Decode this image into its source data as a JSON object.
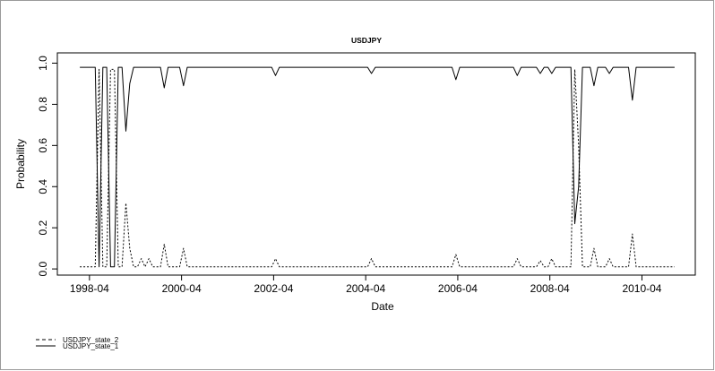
{
  "chart_data": {
    "type": "line",
    "title": "USDJPY",
    "xlabel": "Date",
    "ylabel": "Probability",
    "x_ticks": [
      "1998-04",
      "2000-04",
      "2002-04",
      "2004-04",
      "2006-04",
      "2008-04",
      "2010-04"
    ],
    "y_ticks": [
      "0.0",
      "0.2",
      "0.4",
      "0.6",
      "0.8",
      "1.0"
    ],
    "xlim": [
      "1998-01",
      "2010-12"
    ],
    "ylim": [
      -0.03,
      1.05
    ],
    "grid": false,
    "legend_position": "bottom-left",
    "x": [
      "1998-01",
      "1998-02",
      "1998-03",
      "1998-04",
      "1998-05",
      "1998-06",
      "1998-07",
      "1998-08",
      "1998-09",
      "1998-10",
      "1998-11",
      "1998-12",
      "1999-01",
      "1999-02",
      "1999-03",
      "1999-04",
      "1999-05",
      "1999-06",
      "1999-07",
      "1999-08",
      "1999-09",
      "1999-10",
      "1999-11",
      "1999-12",
      "2000-01",
      "2000-02",
      "2000-03",
      "2000-04",
      "2000-05",
      "2000-06",
      "2000-07",
      "2000-08",
      "2000-09",
      "2000-10",
      "2000-11",
      "2000-12",
      "2001-01",
      "2001-02",
      "2001-03",
      "2001-04",
      "2001-05",
      "2001-06",
      "2001-07",
      "2001-08",
      "2001-09",
      "2001-10",
      "2001-11",
      "2001-12",
      "2002-01",
      "2002-02",
      "2002-03",
      "2002-04",
      "2002-05",
      "2002-06",
      "2002-07",
      "2002-08",
      "2002-09",
      "2002-10",
      "2002-11",
      "2002-12",
      "2003-01",
      "2003-02",
      "2003-03",
      "2003-04",
      "2003-05",
      "2003-06",
      "2003-07",
      "2003-08",
      "2003-09",
      "2003-10",
      "2003-11",
      "2003-12",
      "2004-01",
      "2004-02",
      "2004-03",
      "2004-04",
      "2004-05",
      "2004-06",
      "2004-07",
      "2004-08",
      "2004-09",
      "2004-10",
      "2004-11",
      "2004-12",
      "2005-01",
      "2005-02",
      "2005-03",
      "2005-04",
      "2005-05",
      "2005-06",
      "2005-07",
      "2005-08",
      "2005-09",
      "2005-10",
      "2005-11",
      "2005-12",
      "2006-01",
      "2006-02",
      "2006-03",
      "2006-04",
      "2006-05",
      "2006-06",
      "2006-07",
      "2006-08",
      "2006-09",
      "2006-10",
      "2006-11",
      "2006-12",
      "2007-01",
      "2007-02",
      "2007-03",
      "2007-04",
      "2007-05",
      "2007-06",
      "2007-07",
      "2007-08",
      "2007-09",
      "2007-10",
      "2007-11",
      "2007-12",
      "2008-01",
      "2008-02",
      "2008-03",
      "2008-04",
      "2008-05",
      "2008-06",
      "2008-07",
      "2008-08",
      "2008-09",
      "2008-10",
      "2008-11",
      "2008-12",
      "2009-01",
      "2009-02",
      "2009-03",
      "2009-04",
      "2009-05",
      "2009-06",
      "2009-07",
      "2009-08",
      "2009-09",
      "2009-10",
      "2009-11",
      "2009-12",
      "2010-01",
      "2010-02",
      "2010-03",
      "2010-04",
      "2010-05",
      "2010-06",
      "2010-07",
      "2010-08",
      "2010-09",
      "2010-10",
      "2010-11",
      "2010-12"
    ],
    "series": [
      {
        "name": "USDJPY_state_1",
        "line_style": "solid",
        "values": [
          0.98,
          0.98,
          0.98,
          0.98,
          0.98,
          0.98,
          0.98,
          0.98,
          0.98,
          0.98,
          0.98,
          0.98,
          0.98,
          0.98,
          0.98,
          0.98,
          0.98,
          0.98,
          0.98,
          0.98,
          0.98,
          0.98,
          0.98,
          0.98,
          0.98,
          0.98,
          0.98,
          0.98,
          0.98,
          0.98,
          0.98,
          0.98,
          0.98,
          0.98,
          0.98,
          0.98,
          0.98,
          0.98,
          0.98,
          0.98,
          0.98,
          0.98,
          0.98,
          0.98,
          0.98,
          0.98,
          0.98,
          0.98,
          0.98,
          0.98,
          0.98,
          0.98,
          0.98,
          0.98,
          0.98,
          0.98,
          0.98,
          0.98,
          0.98,
          0.98,
          0.98,
          0.98,
          0.98,
          0.98,
          0.98,
          0.98,
          0.98,
          0.98,
          0.98,
          0.98,
          0.98,
          0.98,
          0.98,
          0.98,
          0.98,
          0.98,
          0.98,
          0.98,
          0.98,
          0.98,
          0.98,
          0.98,
          0.98,
          0.98,
          0.98,
          0.98,
          0.98,
          0.98,
          0.98,
          0.98,
          0.98,
          0.98,
          0.98,
          0.98,
          0.98,
          0.98,
          0.98,
          0.98,
          0.98,
          0.98,
          0.98,
          0.98,
          0.98,
          0.98,
          0.98,
          0.98,
          0.98,
          0.98,
          0.98,
          0.98,
          0.98,
          0.98,
          0.98,
          0.98,
          0.98,
          0.98,
          0.98,
          0.98,
          0.98,
          0.98,
          0.98,
          0.98,
          0.98,
          0.98,
          0.98,
          0.98,
          0.98,
          0.98,
          0.98,
          0.98,
          0.98,
          0.98,
          0.98,
          0.98,
          0.98,
          0.98,
          0.98,
          0.98,
          0.98,
          0.98,
          0.98,
          0.98,
          0.98,
          0.98,
          0.98,
          0.98,
          0.98,
          0.98,
          0.98,
          0.98,
          0.98,
          0.98,
          0.98,
          0.98,
          0.98,
          0.98
        ],
        "dips": [
          {
            "x": "1998-06",
            "y": 0.01
          },
          {
            "x": "1998-09",
            "y": 0.01
          },
          {
            "x": "1998-10",
            "y": 0.01
          },
          {
            "x": "1999-01",
            "y": 0.67
          },
          {
            "x": "1999-02",
            "y": 0.9
          },
          {
            "x": "1999-11",
            "y": 0.88
          },
          {
            "x": "2000-04",
            "y": 0.89
          },
          {
            "x": "2002-04",
            "y": 0.94
          },
          {
            "x": "2004-05",
            "y": 0.95
          },
          {
            "x": "2006-03",
            "y": 0.92
          },
          {
            "x": "2007-07",
            "y": 0.94
          },
          {
            "x": "2008-01",
            "y": 0.95
          },
          {
            "x": "2008-04",
            "y": 0.95
          },
          {
            "x": "2008-10",
            "y": 0.22
          },
          {
            "x": "2008-11",
            "y": 0.4
          },
          {
            "x": "2009-03",
            "y": 0.89
          },
          {
            "x": "2009-07",
            "y": 0.95
          },
          {
            "x": "2010-01",
            "y": 0.82
          }
        ]
      },
      {
        "name": "USDJPY_state_2",
        "line_style": "dashed",
        "values": [
          0.01,
          0.01,
          0.01,
          0.01,
          0.01,
          0.01,
          0.01,
          0.01,
          0.01,
          0.01,
          0.01,
          0.01,
          0.01,
          0.01,
          0.01,
          0.01,
          0.01,
          0.01,
          0.01,
          0.01,
          0.01,
          0.01,
          0.01,
          0.01,
          0.01,
          0.01,
          0.01,
          0.01,
          0.01,
          0.01,
          0.01,
          0.01,
          0.01,
          0.01,
          0.01,
          0.01,
          0.01,
          0.01,
          0.01,
          0.01,
          0.01,
          0.01,
          0.01,
          0.01,
          0.01,
          0.01,
          0.01,
          0.01,
          0.01,
          0.01,
          0.01,
          0.01,
          0.01,
          0.01,
          0.01,
          0.01,
          0.01,
          0.01,
          0.01,
          0.01,
          0.01,
          0.01,
          0.01,
          0.01,
          0.01,
          0.01,
          0.01,
          0.01,
          0.01,
          0.01,
          0.01,
          0.01,
          0.01,
          0.01,
          0.01,
          0.01,
          0.01,
          0.01,
          0.01,
          0.01,
          0.01,
          0.01,
          0.01,
          0.01,
          0.01,
          0.01,
          0.01,
          0.01,
          0.01,
          0.01,
          0.01,
          0.01,
          0.01,
          0.01,
          0.01,
          0.01,
          0.01,
          0.01,
          0.01,
          0.01,
          0.01,
          0.01,
          0.01,
          0.01,
          0.01,
          0.01,
          0.01,
          0.01,
          0.01,
          0.01,
          0.01,
          0.01,
          0.01,
          0.01,
          0.01,
          0.01,
          0.01,
          0.01,
          0.01,
          0.01,
          0.01,
          0.01,
          0.01,
          0.01,
          0.01,
          0.01,
          0.01,
          0.01,
          0.01,
          0.01,
          0.01,
          0.01,
          0.01,
          0.01,
          0.01,
          0.01,
          0.01,
          0.01,
          0.01,
          0.01,
          0.01,
          0.01,
          0.01,
          0.01,
          0.01,
          0.01,
          0.01,
          0.01,
          0.01,
          0.01,
          0.01,
          0.01,
          0.01,
          0.01,
          0.01,
          0.01
        ],
        "spikes": [
          {
            "x": "1998-06",
            "y": 0.97
          },
          {
            "x": "1998-09",
            "y": 0.97
          },
          {
            "x": "1998-10",
            "y": 0.97
          },
          {
            "x": "1999-01",
            "y": 0.32
          },
          {
            "x": "1999-02",
            "y": 0.1
          },
          {
            "x": "1999-05",
            "y": 0.05
          },
          {
            "x": "1999-07",
            "y": 0.05
          },
          {
            "x": "1999-11",
            "y": 0.12
          },
          {
            "x": "2000-04",
            "y": 0.1
          },
          {
            "x": "2002-04",
            "y": 0.05
          },
          {
            "x": "2004-05",
            "y": 0.05
          },
          {
            "x": "2006-03",
            "y": 0.07
          },
          {
            "x": "2007-07",
            "y": 0.05
          },
          {
            "x": "2008-01",
            "y": 0.04
          },
          {
            "x": "2008-04",
            "y": 0.05
          },
          {
            "x": "2008-10",
            "y": 0.97
          },
          {
            "x": "2008-11",
            "y": 0.6
          },
          {
            "x": "2009-03",
            "y": 0.1
          },
          {
            "x": "2009-07",
            "y": 0.05
          },
          {
            "x": "2010-01",
            "y": 0.17
          }
        ]
      }
    ]
  }
}
